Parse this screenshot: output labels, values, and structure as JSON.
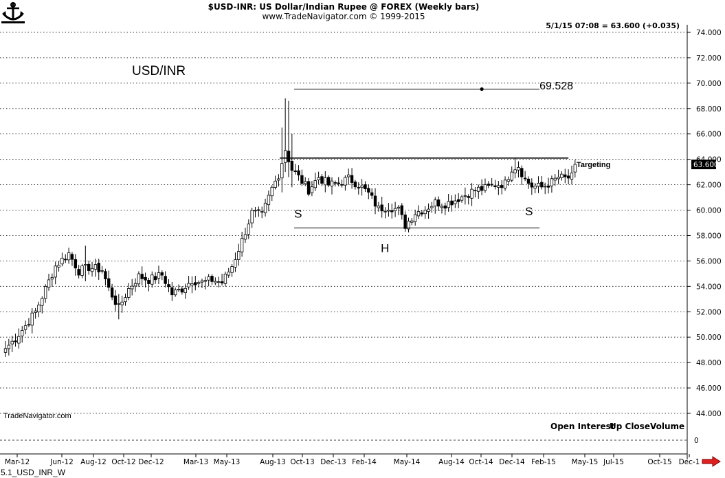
{
  "header": {
    "title": "$USD-INR:  US Dollar/Indian Rupee @ FOREX  (Weekly bars)",
    "subtitle": "www.TradeNavigator.com © 1999-2015",
    "quote": "5/1/15 07:08 = 63.600 (+0.035)"
  },
  "watermark": "TradeNavigator.com",
  "footer_label": "5.1_USD_INR_W",
  "indicator_labels": [
    "Open Interest",
    "Up Close",
    "Volume"
  ],
  "colors": {
    "up_candle": "#ffffff",
    "down_candle": "#000000",
    "price_tag_bg": "#000000",
    "nav_arrow": "#e02020"
  },
  "icons": {
    "logo": "ship-wheel-anchor-icon",
    "nav": "right-arrow-icon"
  },
  "chart_data": {
    "type": "candlestick",
    "title": "USD/INR",
    "ylim": [
      42.6,
      75.2
    ],
    "y_ticks": [
      "74.000",
      "72.000",
      "70.000",
      "68.000",
      "66.000",
      "64.000",
      "62.000",
      "60.000",
      "58.000",
      "56.000",
      "54.000",
      "52.000",
      "50.000",
      "48.000",
      "46.000",
      "44.000"
    ],
    "x_ticks": [
      "Mar-12",
      "Jun-12",
      "Aug-12",
      "Oct-12",
      "Dec-12",
      "Mar-13",
      "May-13",
      "Aug-13",
      "Oct-13",
      "Dec-13",
      "Feb-14",
      "May-14",
      "Aug-14",
      "Oct-14",
      "Dec-14",
      "Feb-15",
      "May-15",
      "Jul-15",
      "Oct-15",
      "Dec-1"
    ],
    "grid": true,
    "last_price": "63.600",
    "lower_panel": {
      "zero_label": "0"
    },
    "annotations": [
      {
        "text": "S",
        "x": "Nov-13",
        "y": 59.4
      },
      {
        "text": "H",
        "x": "May-14",
        "y": 56.7
      },
      {
        "text": "S",
        "x": "Mar-15",
        "y": 59.6
      },
      {
        "text": "69.528",
        "x": "Apr-15",
        "y": 69.5
      },
      {
        "text": "Targeting",
        "x": "May-15",
        "y": 63.6
      }
    ],
    "lines": [
      {
        "name": "neckline",
        "y": 64.1,
        "x_start": "Oct-13",
        "x_end": "Jun-15"
      },
      {
        "name": "base",
        "y": 58.6,
        "x_start": "Nov-13",
        "x_end": "Apr-15"
      },
      {
        "name": "target",
        "y": 69.528,
        "x_start": "Nov-13",
        "x_end": "Apr-15",
        "marker_x": "Dec-14"
      }
    ],
    "anchors": [
      {
        "week": 0,
        "price": 49.1
      },
      {
        "week": 3,
        "price": 49.9
      },
      {
        "week": 6,
        "price": 50.9
      },
      {
        "week": 9,
        "price": 52.0
      },
      {
        "week": 12,
        "price": 53.8
      },
      {
        "week": 15,
        "price": 55.6
      },
      {
        "week": 19,
        "price": 56.6
      },
      {
        "week": 22,
        "price": 55.2
      },
      {
        "week": 25,
        "price": 55.5
      },
      {
        "week": 29,
        "price": 55.3
      },
      {
        "week": 31,
        "price": 53.8
      },
      {
        "week": 34,
        "price": 52.3
      },
      {
        "week": 37,
        "price": 53.8
      },
      {
        "week": 40,
        "price": 54.8
      },
      {
        "week": 43,
        "price": 54.5
      },
      {
        "week": 47,
        "price": 54.9
      },
      {
        "week": 50,
        "price": 53.4
      },
      {
        "week": 53,
        "price": 53.8
      },
      {
        "week": 56,
        "price": 54.5
      },
      {
        "week": 59,
        "price": 54.3
      },
      {
        "week": 62,
        "price": 54.5
      },
      {
        "week": 65,
        "price": 54.3
      },
      {
        "week": 68,
        "price": 55.6
      },
      {
        "week": 71,
        "price": 57.6
      },
      {
        "week": 74,
        "price": 59.8
      },
      {
        "week": 77,
        "price": 59.6
      },
      {
        "week": 80,
        "price": 61.7
      },
      {
        "week": 82,
        "price": 62.8
      },
      {
        "week": 84,
        "price": 64.8
      },
      {
        "week": 86,
        "price": 63.2
      },
      {
        "week": 88,
        "price": 62.6
      },
      {
        "week": 91,
        "price": 61.6
      },
      {
        "week": 94,
        "price": 62.6
      },
      {
        "week": 97,
        "price": 62.0
      },
      {
        "week": 100,
        "price": 62.1
      },
      {
        "week": 103,
        "price": 62.5
      },
      {
        "week": 106,
        "price": 62.0
      },
      {
        "week": 109,
        "price": 61.3
      },
      {
        "week": 112,
        "price": 60.1
      },
      {
        "week": 115,
        "price": 60.3
      },
      {
        "week": 118,
        "price": 60.0
      },
      {
        "week": 120,
        "price": 58.8
      },
      {
        "week": 123,
        "price": 59.8
      },
      {
        "week": 126,
        "price": 60.1
      },
      {
        "week": 129,
        "price": 60.6
      },
      {
        "week": 132,
        "price": 60.5
      },
      {
        "week": 135,
        "price": 60.8
      },
      {
        "week": 138,
        "price": 61.2
      },
      {
        "week": 141,
        "price": 61.6
      },
      {
        "week": 144,
        "price": 61.7
      },
      {
        "week": 147,
        "price": 62.0
      },
      {
        "week": 150,
        "price": 62.1
      },
      {
        "week": 152,
        "price": 63.3
      },
      {
        "week": 154,
        "price": 63.5
      },
      {
        "week": 156,
        "price": 62.4
      },
      {
        "week": 158,
        "price": 61.9
      },
      {
        "week": 161,
        "price": 61.8
      },
      {
        "week": 164,
        "price": 62.2
      },
      {
        "week": 166,
        "price": 62.6
      },
      {
        "week": 168,
        "price": 62.5
      },
      {
        "week": 170,
        "price": 62.6
      },
      {
        "week": 171,
        "price": 63.6
      }
    ],
    "spikes": [
      {
        "week": 83,
        "high": 66.5,
        "low": 61.4
      },
      {
        "week": 84,
        "high": 68.8,
        "low": 63.0
      },
      {
        "week": 85,
        "high": 68.6,
        "low": 62.6
      },
      {
        "week": 86,
        "high": 66.0,
        "low": 61.8
      },
      {
        "week": 24,
        "high": 57.2,
        "low": 54.4
      },
      {
        "week": 34,
        "high": 53.4,
        "low": 51.4
      },
      {
        "week": 120,
        "high": 59.9,
        "low": 58.3
      },
      {
        "week": 153,
        "high": 64.1,
        "low": 62.5
      }
    ]
  }
}
